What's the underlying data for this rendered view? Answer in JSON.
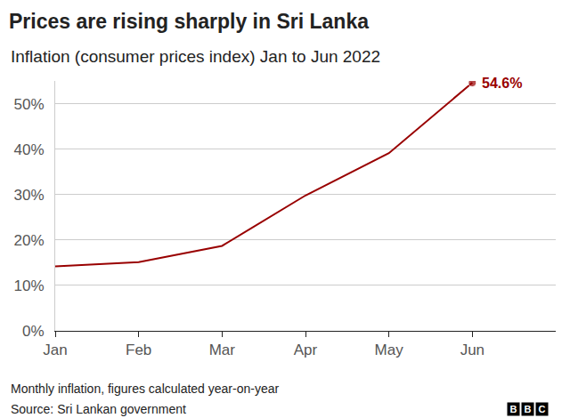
{
  "chart_data": {
    "type": "line",
    "title": "Prices are rising sharply in Sri Lanka",
    "subtitle": "Inflation (consumer prices index) Jan to Jun 2022",
    "categories": [
      "Jan",
      "Feb",
      "Mar",
      "Apr",
      "May",
      "Jun"
    ],
    "values": [
      14.2,
      15.1,
      18.7,
      29.8,
      39.1,
      54.6
    ],
    "value_labels": [
      null,
      null,
      null,
      null,
      null,
      "54.6%"
    ],
    "color": "#990000",
    "ylim": [
      0,
      55
    ],
    "yticks": [
      {
        "value": 0,
        "label": "0%"
      },
      {
        "value": 10,
        "label": "10%"
      },
      {
        "value": 20,
        "label": "20%"
      },
      {
        "value": 30,
        "label": "30%"
      },
      {
        "value": 40,
        "label": "40%"
      },
      {
        "value": 50,
        "label": "50%"
      }
    ],
    "grid": true,
    "note": "Monthly inflation, figures calculated year-on-year",
    "source": "Source: Sri Lankan government",
    "logo": "BBC"
  }
}
